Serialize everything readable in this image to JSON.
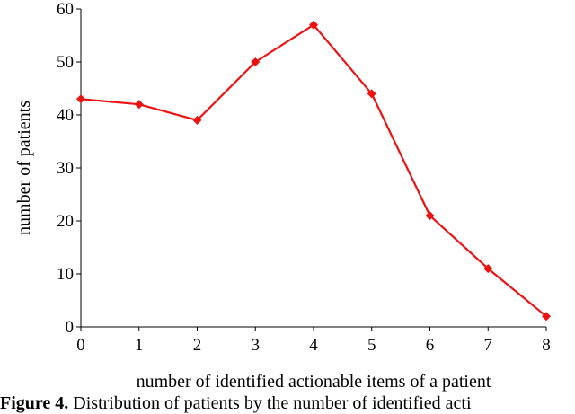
{
  "chart_data": {
    "type": "line",
    "x": [
      0,
      1,
      2,
      3,
      4,
      5,
      6,
      7,
      8
    ],
    "series": [
      {
        "values": [
          43,
          42,
          39,
          50,
          57,
          44,
          21,
          11,
          2
        ],
        "color": "#ee1111",
        "marker": "diamond"
      }
    ],
    "xlabel": "number of identified actionable items of a patient",
    "ylabel": "number of patients",
    "xlim": [
      0,
      8
    ],
    "ylim": [
      0,
      60
    ],
    "xticks": [
      "0",
      "1",
      "2",
      "3",
      "4",
      "5",
      "6",
      "7",
      "8"
    ],
    "yticks": [
      "0",
      "10",
      "20",
      "30",
      "40",
      "50",
      "60"
    ],
    "grid": false
  },
  "caption": {
    "label": "Figure 4.",
    "text": "Distribution of patients by the number of identified acti"
  }
}
